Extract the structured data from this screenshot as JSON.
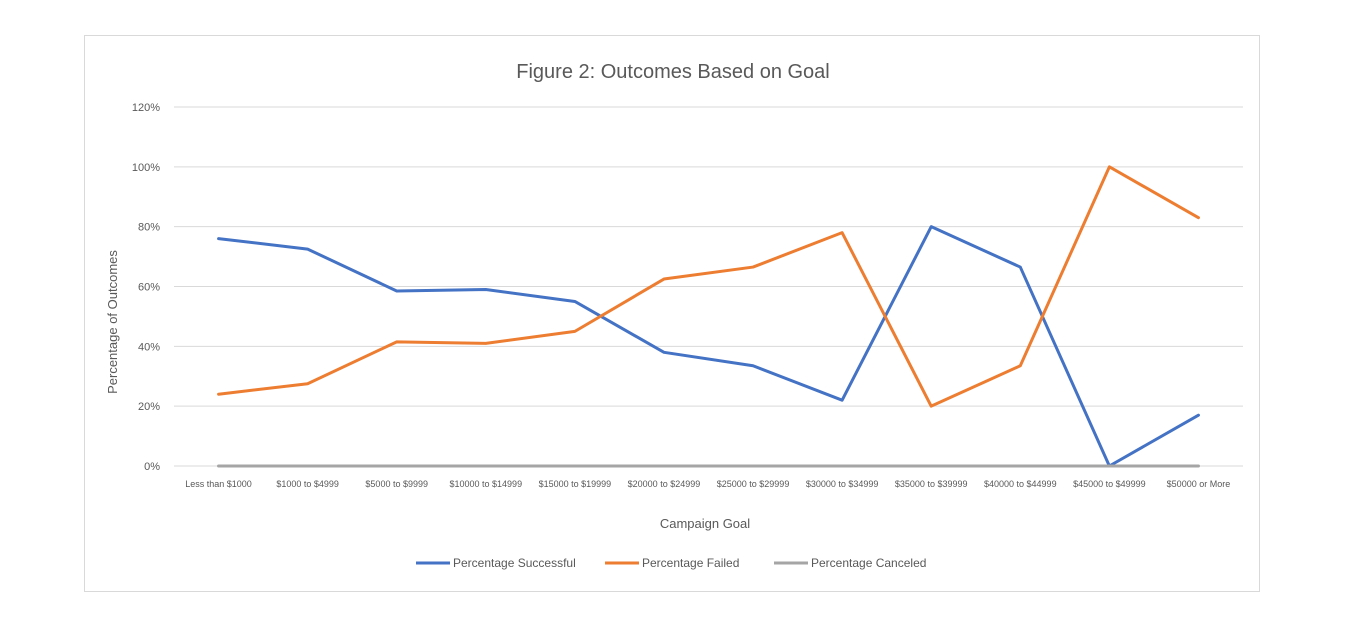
{
  "chart_data": {
    "type": "line",
    "title": "Figure 2: Outcomes Based on Goal",
    "xlabel": "Campaign Goal",
    "ylabel": "Percentage of Outcomes",
    "ylim": [
      0,
      120
    ],
    "yticks": [
      "0%",
      "20%",
      "40%",
      "60%",
      "80%",
      "100%",
      "120%"
    ],
    "grid": true,
    "legend_position": "bottom",
    "categories": [
      "Less than $1000",
      "$1000 to $4999",
      "$5000 to $9999",
      "$10000 to $14999",
      "$15000 to $19999",
      "$20000 to $24999",
      "$25000 to $29999",
      "$30000 to $34999",
      "$35000 to $39999",
      "$40000 to $44999",
      "$45000 to $49999",
      "$50000 or More"
    ],
    "series": [
      {
        "name": "Percentage Successful",
        "color": "#4472c4",
        "values": [
          76,
          72.5,
          58.5,
          59,
          55,
          38,
          33.5,
          22,
          80,
          66.5,
          0,
          17
        ]
      },
      {
        "name": "Percentage Failed",
        "color": "#ed7d31",
        "values": [
          24,
          27.5,
          41.5,
          41,
          45,
          62.5,
          66.5,
          78,
          20,
          33.5,
          100,
          83
        ]
      },
      {
        "name": "Percentage Canceled",
        "color": "#a5a5a5",
        "values": [
          0,
          0,
          0,
          0,
          0,
          0,
          0,
          0,
          0,
          0,
          0,
          0
        ]
      }
    ]
  }
}
